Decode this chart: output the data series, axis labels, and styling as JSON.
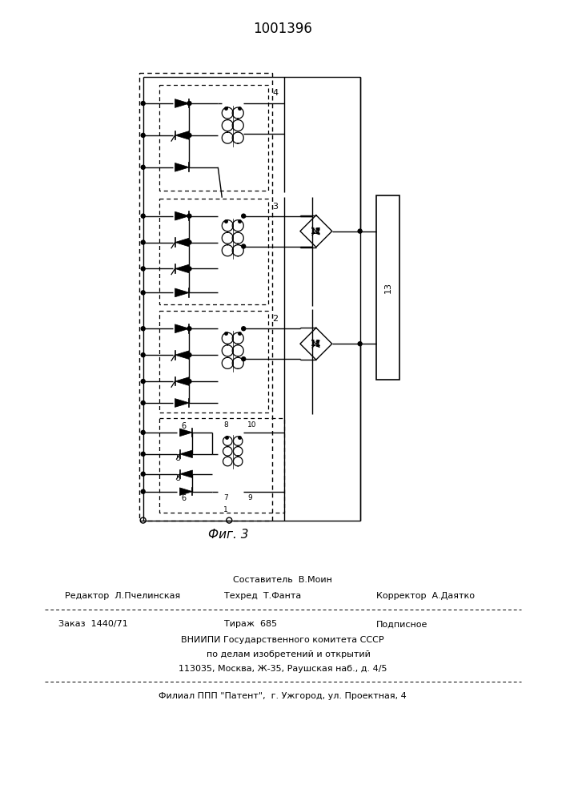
{
  "title": "1001396",
  "fig_label": "Фиг. 3",
  "editor_label": "Редактор  Л.Пчелинская",
  "composer_label": "Составитель  В.Моин",
  "techred_label": "Техред  Т.Фанта",
  "corrector_label": "Корректор  А.Даятко",
  "order_label": "Заказ  1440/71",
  "tirazh_label": "Тираж  685",
  "podpisnoe_label": "Подписное",
  "vniiipi1": "ВНИИПИ Государственного комитета СССР",
  "vniiipi2": "    по делам изобретений и открытий",
  "address": "113035, Москва, Ж-35, Раушская наб., д. 4/5",
  "filial": "Филиал ППП \"Патент\",  г. Ужгород, ул. Проектная, 4",
  "bg": "#ffffff",
  "lc": "#000000"
}
